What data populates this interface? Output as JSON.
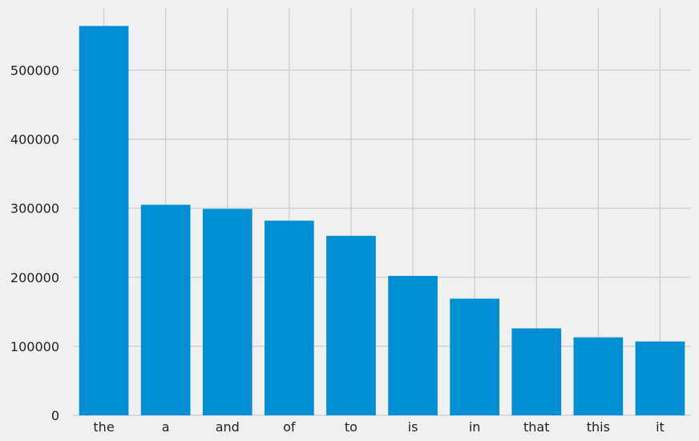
{
  "chart_data": {
    "type": "bar",
    "categories": [
      "the",
      "a",
      "and",
      "of",
      "to",
      "is",
      "in",
      "that",
      "this",
      "it"
    ],
    "values": [
      564000,
      305000,
      299000,
      282000,
      260000,
      202000,
      169000,
      126000,
      113000,
      107000
    ],
    "ylim": [
      0,
      590000
    ],
    "yticks": [
      0,
      100000,
      200000,
      300000,
      400000,
      500000
    ],
    "ytick_labels": [
      "0",
      "100000",
      "200000",
      "300000",
      "400000",
      "500000"
    ],
    "grid": true,
    "colors": {
      "bar": "#008fd5",
      "background": "#f0f0f0",
      "grid": "#cbcbcb"
    }
  }
}
